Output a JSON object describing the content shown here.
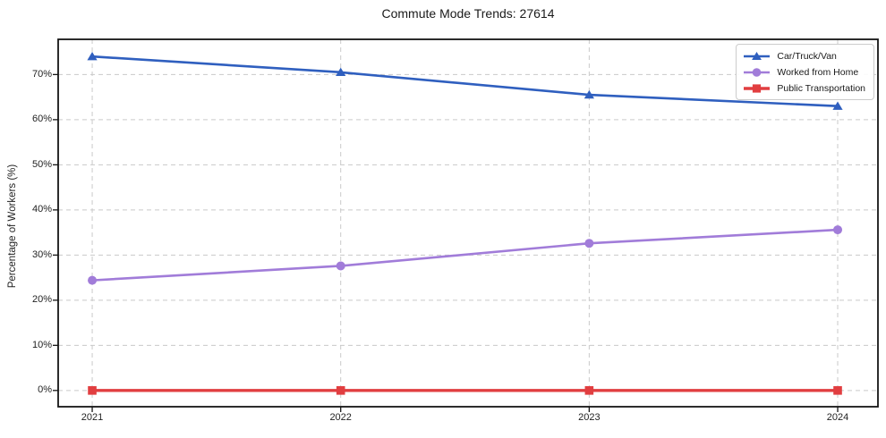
{
  "title": "Commute Mode Trends: 27614",
  "colors": {
    "car_truck_van": "#2f5fbf",
    "worked_from_home": "#a17cd9",
    "public_transportation": "#e13e40",
    "grid": "#c9c9c9",
    "spine": "#141414",
    "text": "#1f1f1f",
    "legend_border": "#cccccc",
    "background": "#ffffff"
  },
  "chart_data": {
    "type": "line",
    "title": "Commute Mode Trends: 27614",
    "xlabel": "",
    "ylabel": "Percentage of Workers (%)",
    "x": [
      2021,
      2022,
      2023,
      2024
    ],
    "series": [
      {
        "name": "Car/Truck/Van",
        "values": [
          74.0,
          70.5,
          65.5,
          63.0
        ],
        "color": "#2f5fbf",
        "marker": "triangle",
        "line_width": 2.6
      },
      {
        "name": "Worked from Home",
        "values": [
          24.4,
          27.6,
          32.6,
          35.6
        ],
        "color": "#a17cd9",
        "marker": "circle",
        "line_width": 2.6
      },
      {
        "name": "Public Transportation",
        "values": [
          0.0,
          0.0,
          0.0,
          0.0
        ],
        "color": "#e13e40",
        "marker": "square",
        "line_width": 3.4
      }
    ],
    "yticks": [
      0,
      10,
      20,
      30,
      40,
      50,
      60,
      70
    ],
    "ytick_labels": [
      "0%",
      "10%",
      "20%",
      "30%",
      "40%",
      "50%",
      "60%",
      "70%"
    ],
    "xtick_labels": [
      "2021",
      "2022",
      "2023",
      "2024"
    ],
    "ylim": [
      -3.6,
      77.8
    ],
    "xlim": [
      2020.863,
      2024.162
    ],
    "grid": "dashed",
    "legend_position": "upper right"
  }
}
